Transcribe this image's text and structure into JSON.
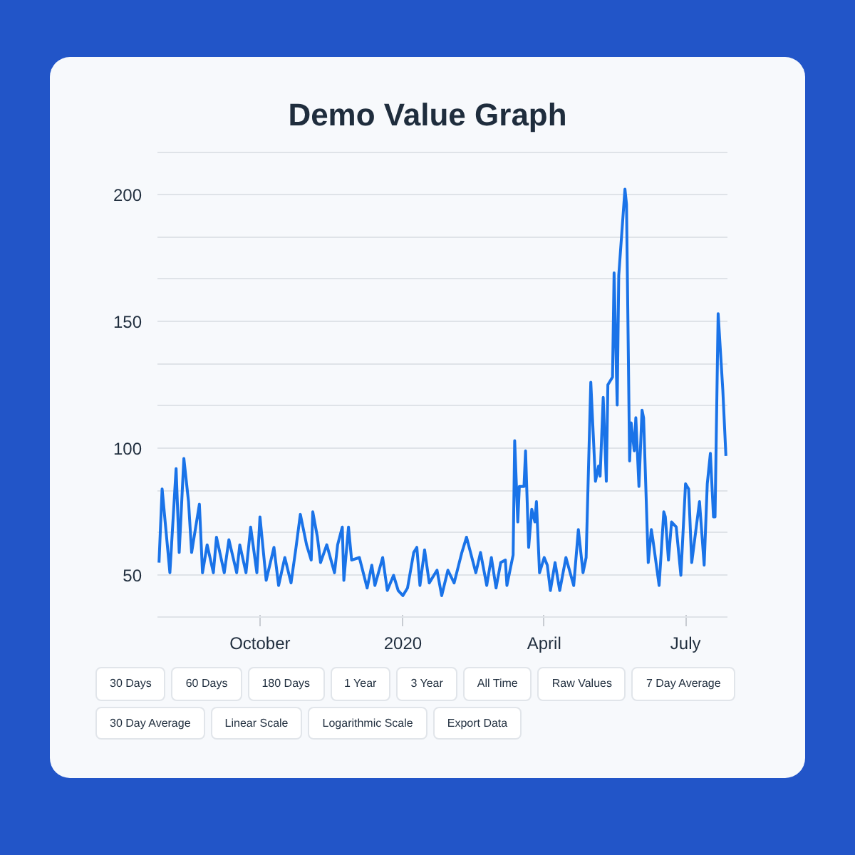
{
  "chart_data": {
    "type": "line",
    "title": "Demo Value Graph",
    "x": [
      "2019-07-28",
      "2019-07-30",
      "2019-08-04",
      "2019-08-08",
      "2019-08-10",
      "2019-08-13",
      "2019-08-16",
      "2019-08-18",
      "2019-08-23",
      "2019-08-25",
      "2019-08-28",
      "2019-09-01",
      "2019-09-03",
      "2019-09-08",
      "2019-09-11",
      "2019-09-16",
      "2019-09-18",
      "2019-09-22",
      "2019-09-25",
      "2019-09-29",
      "2019-10-01",
      "2019-10-05",
      "2019-10-10",
      "2019-10-13",
      "2019-10-17",
      "2019-10-21",
      "2019-10-24",
      "2019-10-27",
      "2019-10-31",
      "2019-11-03",
      "2019-11-04",
      "2019-11-07",
      "2019-11-09",
      "2019-11-13",
      "2019-11-18",
      "2019-11-20",
      "2019-11-23",
      "2019-11-24",
      "2019-11-27",
      "2019-11-29",
      "2019-12-04",
      "2019-12-09",
      "2019-12-12",
      "2019-12-14",
      "2019-12-19",
      "2019-12-22",
      "2019-12-26",
      "2019-12-29",
      "2020-01-01",
      "2020-01-04",
      "2020-01-08",
      "2020-01-10",
      "2020-01-12",
      "2020-01-15",
      "2020-01-18",
      "2020-01-23",
      "2020-01-26",
      "2020-01-30",
      "2020-02-03",
      "2020-02-08",
      "2020-02-11",
      "2020-02-17",
      "2020-02-20",
      "2020-02-24",
      "2020-02-27",
      "2020-03-01",
      "2020-03-04",
      "2020-03-07",
      "2020-03-08",
      "2020-03-12",
      "2020-03-13",
      "2020-03-15",
      "2020-03-16",
      "2020-03-19",
      "2020-03-20",
      "2020-03-22",
      "2020-03-24",
      "2020-03-26",
      "2020-03-27",
      "2020-03-29",
      "2020-04-01",
      "2020-04-03",
      "2020-04-05",
      "2020-04-08",
      "2020-04-11",
      "2020-04-15",
      "2020-04-20",
      "2020-04-23",
      "2020-04-26",
      "2020-04-28",
      "2020-05-01",
      "2020-05-04",
      "2020-05-06",
      "2020-05-07",
      "2020-05-09",
      "2020-05-11",
      "2020-05-12",
      "2020-05-15",
      "2020-05-16",
      "2020-05-18",
      "2020-05-19",
      "2020-05-23",
      "2020-05-24",
      "2020-05-26",
      "2020-05-27",
      "2020-05-29",
      "2020-05-30",
      "2020-06-01",
      "2020-06-03",
      "2020-06-04",
      "2020-06-07",
      "2020-06-09",
      "2020-06-10",
      "2020-06-14",
      "2020-06-17",
      "2020-06-18",
      "2020-06-20",
      "2020-06-22",
      "2020-06-25",
      "2020-06-28",
      "2020-07-01",
      "2020-07-03",
      "2020-07-05",
      "2020-07-10",
      "2020-07-13",
      "2020-07-15",
      "2020-07-17",
      "2020-07-19",
      "2020-07-20",
      "2020-07-22",
      "2020-07-25",
      "2020-07-27"
    ],
    "series": [
      {
        "color": "#1a73e8",
        "values": [
          55,
          84,
          51,
          92,
          59,
          96,
          79,
          59,
          78,
          51,
          62,
          51,
          65,
          51,
          64,
          51,
          62,
          51,
          69,
          51,
          73,
          48,
          61,
          46,
          57,
          47,
          60,
          74,
          62,
          56,
          75,
          65,
          55,
          62,
          51,
          62,
          69,
          48,
          69,
          56,
          57,
          45,
          54,
          46,
          57,
          44,
          50,
          44,
          42,
          45,
          59,
          61,
          46,
          60,
          47,
          52,
          42,
          52,
          47,
          59,
          65,
          51,
          59,
          46,
          57,
          45,
          55,
          56,
          46,
          58,
          103,
          71,
          85,
          85,
          99,
          61,
          76,
          71,
          79,
          51,
          57,
          54,
          44,
          55,
          44,
          57,
          46,
          68,
          51,
          57,
          126,
          87,
          93,
          89,
          120,
          87,
          125,
          128,
          169,
          117,
          168,
          202,
          196,
          95,
          110,
          99,
          112,
          85,
          115,
          112,
          55,
          68,
          64,
          46,
          75,
          73,
          56,
          71,
          69,
          50,
          86,
          84,
          55,
          79,
          54,
          86,
          98,
          73,
          73,
          153,
          123,
          97
        ]
      }
    ],
    "xlim": [
      "2019-07-27",
      "2020-07-28"
    ],
    "xticks": [
      {
        "value": "2019-10-01",
        "label": "October"
      },
      {
        "value": "2020-01-01",
        "label": "2020"
      },
      {
        "value": "2020-04-01",
        "label": "April"
      },
      {
        "value": "2020-07-01",
        "label": "July"
      }
    ],
    "ylim": [
      33.3,
      216.7
    ],
    "yticks": [
      {
        "value": 33.3,
        "label": null
      },
      50,
      {
        "value": 66.7,
        "label": null
      },
      {
        "value": 83.3,
        "label": null
      },
      100,
      {
        "value": 116.7,
        "label": null
      },
      {
        "value": 133.3,
        "label": null
      },
      150,
      {
        "value": 166.7,
        "label": null
      },
      {
        "value": 183.3,
        "label": null
      },
      200,
      {
        "value": 216.7,
        "label": null
      }
    ],
    "grid": "y",
    "annotations": [
      "30 Days",
      "60 Days",
      "180 Days",
      "1 Year",
      "3 Year",
      "All Time",
      "Raw Values",
      "7 Day Average",
      "30 Day Average",
      "Linear Scale",
      "Logarithmic Scale",
      "Export Data"
    ]
  }
}
